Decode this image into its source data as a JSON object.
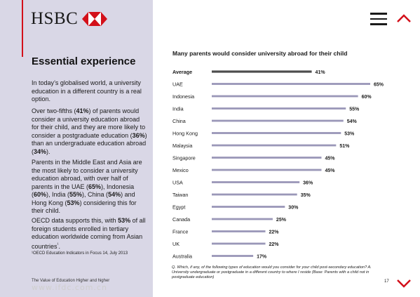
{
  "brand": {
    "name": "HSBC",
    "accent_color": "#d3101a",
    "sidebar_color": "#d9d7e6"
  },
  "nav": {
    "menu_icon": "hamburger-menu-icon",
    "up_icon": "chevron-up-icon",
    "down_icon": "chevron-down-icon"
  },
  "sidebar": {
    "heading": "Essential experience",
    "paragraphs": [
      [
        {
          "t": "In today’s globalised world, a university education in a different country is a real option."
        }
      ],
      [
        {
          "t": "Over two-fifths ("
        },
        {
          "t": "41%",
          "b": true
        },
        {
          "t": ") of parents would consider a university education abroad for their child, and they are more likely to consider a postgraduate education ("
        },
        {
          "t": "36%",
          "b": true
        },
        {
          "t": ") than an undergraduate education abroad ("
        },
        {
          "t": "34%",
          "b": true
        },
        {
          "t": ")."
        }
      ],
      [
        {
          "t": "Parents in the Middle East and Asia are the most likely to consider a university education abroad, with over half of parents in the UAE ("
        },
        {
          "t": "65%",
          "b": true
        },
        {
          "t": "), Indonesia ("
        },
        {
          "t": "60%",
          "b": true
        },
        {
          "t": "), India ("
        },
        {
          "t": "55%",
          "b": true
        },
        {
          "t": "), China ("
        },
        {
          "t": "54%",
          "b": true
        },
        {
          "t": ") and Hong Kong ("
        },
        {
          "t": "53%",
          "b": true
        },
        {
          "t": ") considering this for their child."
        }
      ],
      [
        {
          "t": "OECD data supports this, with "
        },
        {
          "t": "53%",
          "b": true
        },
        {
          "t": " of all foreign students enrolled in tertiary education worldwide coming from Asian countries"
        },
        {
          "t": "¹",
          "sup": true
        },
        {
          "t": "."
        }
      ]
    ],
    "footnote": "¹OECD Education Indicators in Focus 14, July 2013",
    "footer": "The Value of Education Higher and higher",
    "watermark": "www.ifdc.com.cn"
  },
  "chart_data": {
    "type": "bar",
    "orientation": "horizontal",
    "title": "Many parents would consider university abroad for their child",
    "categories": [
      "Average",
      "UAE",
      "Indonesia",
      "India",
      "China",
      "Hong Kong",
      "Malaysia",
      "Singapore",
      "Mexico",
      "USA",
      "Taiwan",
      "Egypt",
      "Canada",
      "France",
      "UK",
      "Australia"
    ],
    "values": [
      41,
      65,
      60,
      55,
      54,
      53,
      51,
      45,
      45,
      36,
      35,
      30,
      25,
      22,
      22,
      17
    ],
    "value_labels": [
      "41%",
      "65%",
      "60%",
      "55%",
      "54%",
      "53%",
      "51%",
      "45%",
      "45%",
      "36%",
      "35%",
      "30%",
      "25%",
      "22%",
      "22%",
      "17%"
    ],
    "highlight_category": "Average",
    "colors": {
      "average": "#4d4d4d",
      "bars": "#9a97b8"
    },
    "xlim": [
      0,
      65
    ],
    "grid": false,
    "legend": "none"
  },
  "question": "Q. Which, if any, of the following types of education would you consider for your child post-secondary education? A. University undergraduate or postgraduate in a different country to where I reside (Base: Parents with a child not in postgraduate education)",
  "page_number": "17"
}
